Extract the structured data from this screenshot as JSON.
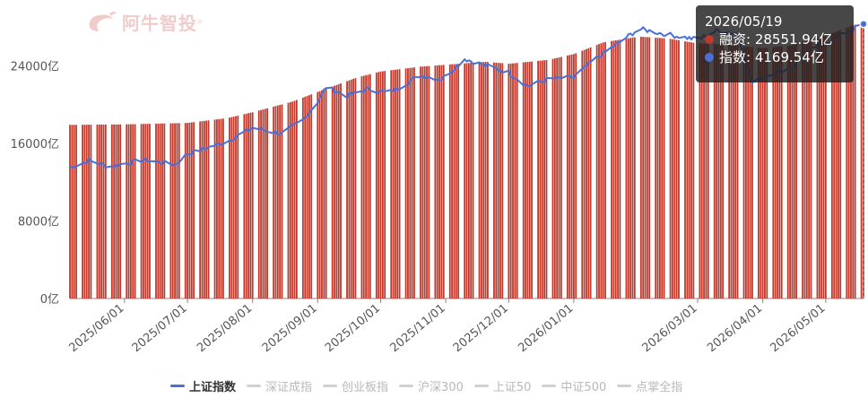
{
  "brand": {
    "name": "阿牛智投",
    "mark": "®"
  },
  "tooltip": {
    "date": "2026/05/19",
    "rows": [
      {
        "label": "融资: 28551.94亿",
        "color": "#c0392b"
      },
      {
        "label": "指数: 4169.54亿",
        "color": "#4a6fd8"
      }
    ]
  },
  "legend": [
    {
      "label": "上证指数",
      "active": true
    },
    {
      "label": "深证成指",
      "active": false
    },
    {
      "label": "创业板指",
      "active": false
    },
    {
      "label": "沪深300",
      "active": false
    },
    {
      "label": "上证50",
      "active": false
    },
    {
      "label": "中证500",
      "active": false
    },
    {
      "label": "点掌全指",
      "active": false
    }
  ],
  "colors": {
    "bar": "#c0392b",
    "line": "#4a6fd8",
    "axis": "#666666"
  },
  "chart_data": {
    "type": "bar",
    "y_axis": {
      "ticks": [
        "0亿",
        "8000亿",
        "16000亿",
        "24000亿"
      ],
      "min": 0,
      "max": 28000
    },
    "x_ticks": [
      "2025/06/01",
      "2025/07/01",
      "2025/08/01",
      "2025/09/01",
      "2025/10/01",
      "2025/11/01",
      "2025/12/01",
      "2026/01/01",
      "2026/03/01",
      "2026/04/01",
      "2026/05/01"
    ],
    "date_range": [
      "2025/05/06",
      "2026/05/19"
    ],
    "series": [
      {
        "name": "融资",
        "type": "bar",
        "anchors": [
          [
            "2025/05/06",
            17900
          ],
          [
            "2025/06/01",
            17950
          ],
          [
            "2025/07/01",
            18100
          ],
          [
            "2025/07/20",
            18600
          ],
          [
            "2025/08/01",
            19200
          ],
          [
            "2025/08/20",
            20300
          ],
          [
            "2025/09/01",
            21300
          ],
          [
            "2025/09/20",
            22800
          ],
          [
            "2025/10/01",
            23400
          ],
          [
            "2025/10/20",
            23900
          ],
          [
            "2025/11/01",
            24100
          ],
          [
            "2025/11/20",
            24400
          ],
          [
            "2025/12/01",
            24200
          ],
          [
            "2025/12/20",
            24600
          ],
          [
            "2026/01/01",
            25200
          ],
          [
            "2026/01/15",
            26400
          ],
          [
            "2026/02/01",
            27000
          ],
          [
            "2026/02/15",
            26800
          ],
          [
            "2026/03/01",
            26300
          ],
          [
            "2026/03/15",
            26200
          ],
          [
            "2026/04/01",
            25800
          ],
          [
            "2026/04/15",
            26100
          ],
          [
            "2026/05/01",
            27100
          ],
          [
            "2026/05/19",
            28551.94
          ]
        ]
      },
      {
        "name": "指数",
        "type": "line",
        "anchors": [
          [
            "2025/05/06",
            13500
          ],
          [
            "2025/05/15",
            14200
          ],
          [
            "2025/05/25",
            13600
          ],
          [
            "2025/06/10",
            14300
          ],
          [
            "2025/06/25",
            13800
          ],
          [
            "2025/07/01",
            14900
          ],
          [
            "2025/07/20",
            16200
          ],
          [
            "2025/08/01",
            17600
          ],
          [
            "2025/08/15",
            17000
          ],
          [
            "2025/08/25",
            18400
          ],
          [
            "2025/09/01",
            20300
          ],
          [
            "2025/09/05",
            21800
          ],
          [
            "2025/09/15",
            20900
          ],
          [
            "2025/09/25",
            21600
          ],
          [
            "2025/10/05",
            21200
          ],
          [
            "2025/10/20",
            23000
          ],
          [
            "2025/10/30",
            22600
          ],
          [
            "2025/11/10",
            24700
          ],
          [
            "2025/11/20",
            24000
          ],
          [
            "2025/12/01",
            23300
          ],
          [
            "2025/12/10",
            21900
          ],
          [
            "2025/12/20",
            22600
          ],
          [
            "2026/01/01",
            22800
          ],
          [
            "2026/01/10",
            24500
          ],
          [
            "2026/01/20",
            26000
          ],
          [
            "2026/02/01",
            27800
          ],
          [
            "2026/02/15",
            27200
          ],
          [
            "2026/03/01",
            26700
          ],
          [
            "2026/03/10",
            27600
          ],
          [
            "2026/03/20",
            27300
          ],
          [
            "2026/03/27",
            22200
          ],
          [
            "2026/04/05",
            23200
          ],
          [
            "2026/04/15",
            23800
          ],
          [
            "2026/04/25",
            25800
          ],
          [
            "2026/05/05",
            26800
          ],
          [
            "2026/05/19",
            28300
          ]
        ]
      }
    ]
  }
}
